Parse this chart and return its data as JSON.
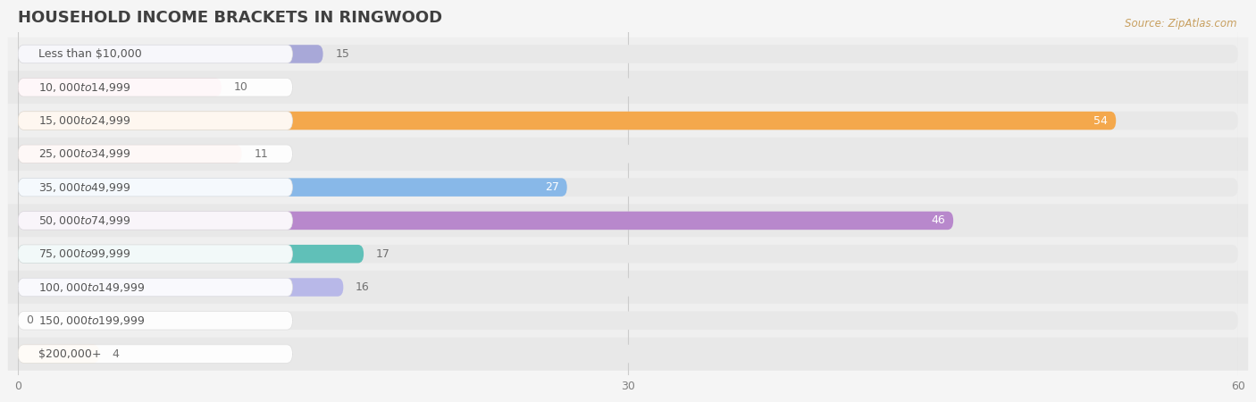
{
  "title": "HOUSEHOLD INCOME BRACKETS IN RINGWOOD",
  "source": "Source: ZipAtlas.com",
  "categories": [
    "Less than $10,000",
    "$10,000 to $14,999",
    "$15,000 to $24,999",
    "$25,000 to $34,999",
    "$35,000 to $49,999",
    "$50,000 to $74,999",
    "$75,000 to $99,999",
    "$100,000 to $149,999",
    "$150,000 to $199,999",
    "$200,000+"
  ],
  "values": [
    15,
    10,
    54,
    11,
    27,
    46,
    17,
    16,
    0,
    4
  ],
  "bar_colors": [
    "#a8a8d8",
    "#f4a0b8",
    "#f4a84c",
    "#f4b0a0",
    "#88b8e8",
    "#b888cc",
    "#60c0b8",
    "#b8b8e8",
    "#f4a0b8",
    "#f8d8a8"
  ],
  "xlim": [
    0,
    60
  ],
  "xticks": [
    0,
    30,
    60
  ],
  "background_color": "#f5f5f5",
  "bar_background_color": "#e8e8e8",
  "row_background_colors": [
    "#f0f0f0",
    "#e8e8e8"
  ],
  "title_color": "#404040",
  "label_color": "#555555",
  "value_color_inside": "#ffffff",
  "value_color_outside": "#707070",
  "source_color": "#c8a060",
  "title_fontsize": 13,
  "label_fontsize": 9,
  "value_fontsize": 9,
  "bar_height": 0.55,
  "value_threshold": 20
}
